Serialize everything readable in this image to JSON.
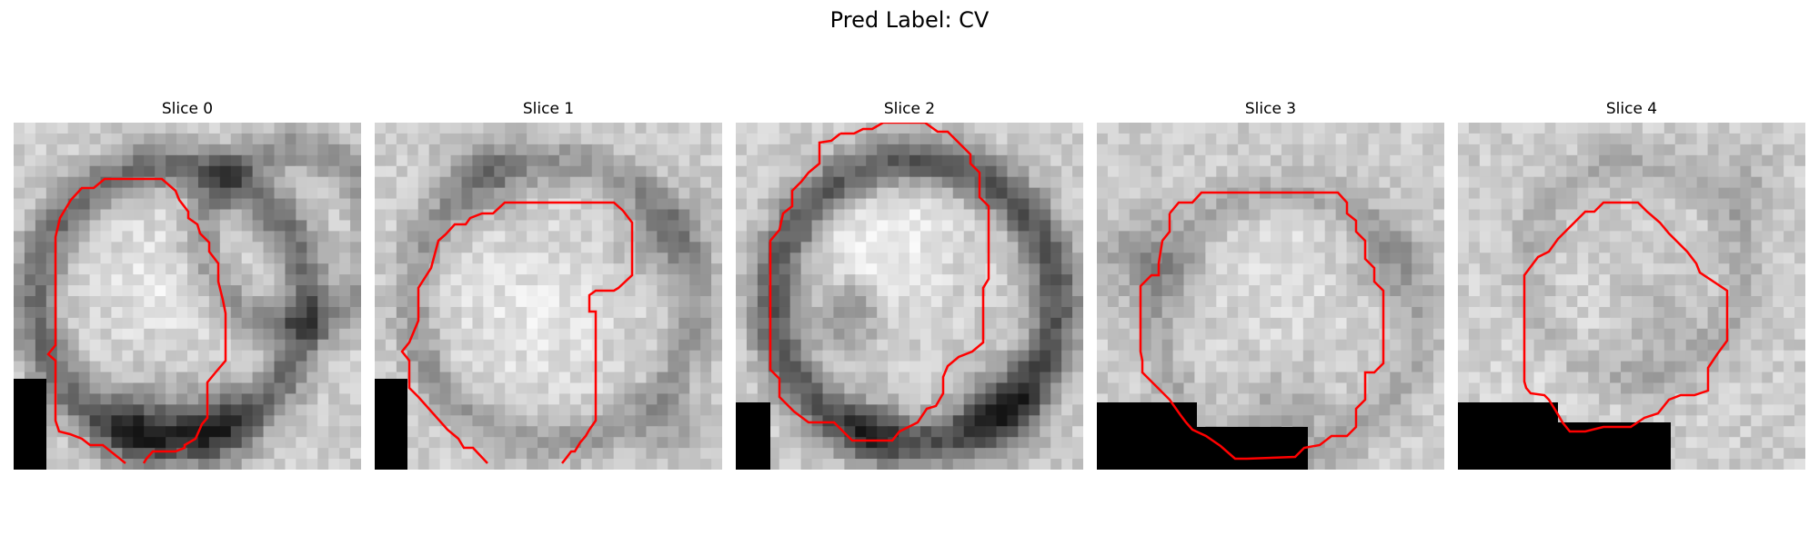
{
  "figure": {
    "title": "Pred Label: CV",
    "panels": [
      {
        "title": "Slice 0",
        "icon": "ct-slice-image"
      },
      {
        "title": "Slice 1",
        "icon": "ct-slice-image"
      },
      {
        "title": "Slice 2",
        "icon": "ct-slice-image"
      },
      {
        "title": "Slice 3",
        "icon": "ct-slice-image"
      },
      {
        "title": "Slice 4",
        "icon": "ct-slice-image"
      }
    ],
    "colors": {
      "contour": "#ff0000",
      "background": "#ffffff",
      "mask": "#000000"
    }
  }
}
